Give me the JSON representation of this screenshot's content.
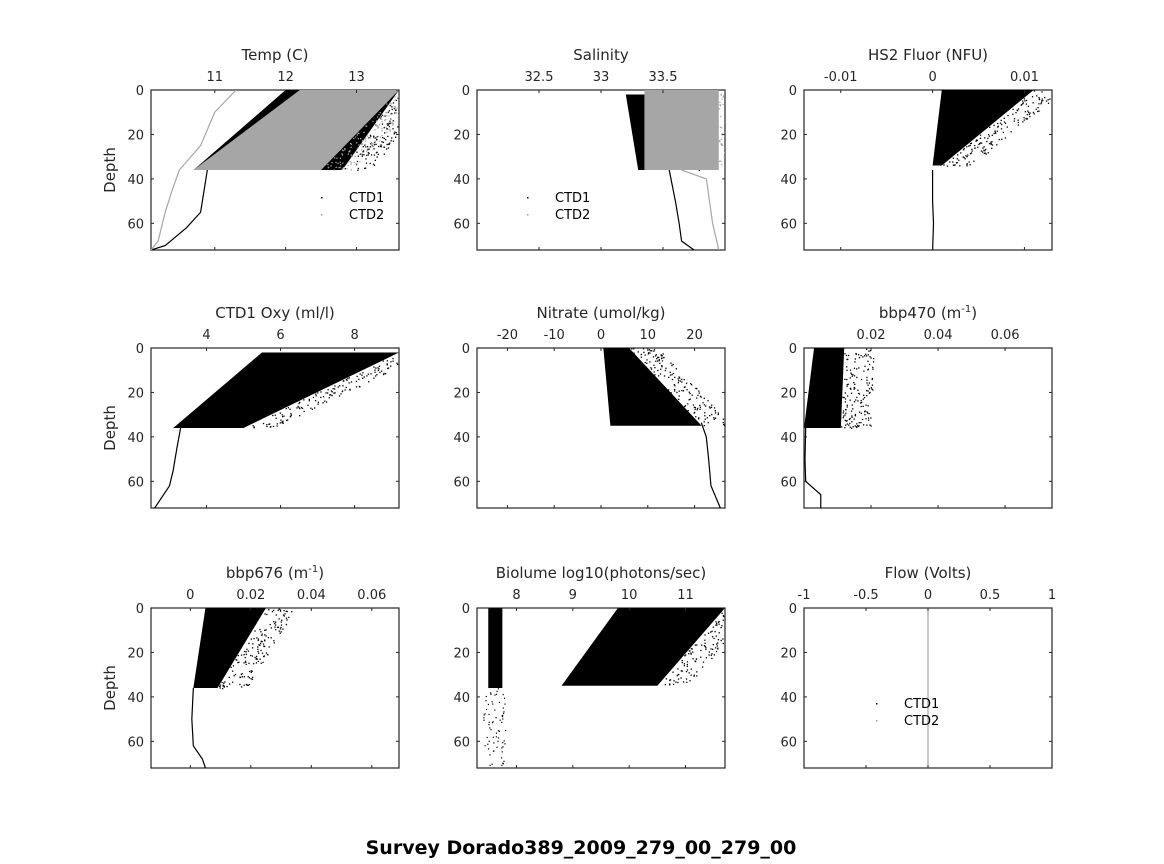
{
  "figure": {
    "suptitle": "Survey Dorado389_2009_279_00_279_00",
    "colors": {
      "ctd1": "#000000",
      "ctd2": "#a6a6a6",
      "axis": "#262626"
    }
  },
  "chart_data": [
    {
      "type": "scatter",
      "title": "Temp (C)",
      "title_sup": "",
      "ylabel": "Depth",
      "xlim": [
        10.1,
        13.6
      ],
      "ylim": [
        72,
        0
      ],
      "xticks": [
        11,
        12,
        13
      ],
      "xtick_labels": [
        "11",
        "12",
        "13"
      ],
      "yticks": [
        0,
        20,
        40,
        60
      ],
      "ytick_labels": [
        "0",
        "20",
        "40",
        "60"
      ],
      "legend": {
        "entries": [
          "CTD1",
          "CTD2"
        ],
        "location": "lower-right"
      },
      "series": [
        {
          "name": "CTD1",
          "color": "#000000",
          "profile": [
            [
              13.4,
              2
            ],
            [
              12.9,
              8
            ],
            [
              12.3,
              14
            ],
            [
              11.8,
              20
            ],
            [
              11.3,
              28
            ],
            [
              10.9,
              35
            ],
            [
              10.85,
              45
            ],
            [
              10.8,
              55
            ],
            [
              10.6,
              62
            ],
            [
              10.3,
              70
            ],
            [
              10.1,
              72
            ]
          ],
          "band": {
            "depth_range": [
              0,
              36
            ],
            "x_surface": [
              12.0,
              13.6
            ],
            "x_bottom": [
              10.7,
              12.8
            ]
          }
        },
        {
          "name": "CTD2",
          "color": "#a6a6a6",
          "profile": [
            [
              11.3,
              0
            ],
            [
              11.0,
              10
            ],
            [
              10.8,
              25
            ],
            [
              10.5,
              36
            ],
            [
              10.4,
              45
            ],
            [
              10.3,
              55
            ],
            [
              10.2,
              68
            ],
            [
              10.1,
              72
            ]
          ],
          "band": {
            "depth_range": [
              0,
              36
            ],
            "x_surface": [
              12.2,
              13.6
            ],
            "x_bottom": [
              10.7,
              12.5
            ]
          }
        }
      ]
    },
    {
      "type": "scatter",
      "title": "Salinity",
      "title_sup": "",
      "ylabel": "",
      "xlim": [
        32.0,
        34.0
      ],
      "ylim": [
        72,
        0
      ],
      "xticks": [
        32.5,
        33,
        33.5
      ],
      "xtick_labels": [
        "32.5",
        "33",
        "33.5"
      ],
      "yticks": [
        0,
        20,
        40,
        60
      ],
      "ytick_labels": [
        "0",
        "20",
        "40",
        "60"
      ],
      "legend": {
        "entries": [
          "CTD1",
          "CTD2"
        ],
        "location": "lower-left"
      },
      "series": [
        {
          "name": "CTD1",
          "color": "#000000",
          "profile": [
            [
              33.55,
              36
            ],
            [
              33.6,
              50
            ],
            [
              33.63,
              60
            ],
            [
              33.65,
              68
            ],
            [
              33.75,
              72
            ]
          ],
          "band": {
            "depth_range": [
              2,
              36
            ],
            "x_surface": [
              33.2,
              33.6
            ],
            "x_bottom": [
              33.3,
              33.6
            ]
          }
        },
        {
          "name": "CTD2",
          "color": "#a6a6a6",
          "profile": [
            [
              33.65,
              36
            ],
            [
              33.85,
              40
            ],
            [
              33.9,
              60
            ],
            [
              33.95,
              72
            ]
          ],
          "band": {
            "depth_range": [
              0,
              36
            ],
            "x_surface": [
              33.35,
              33.95
            ],
            "x_bottom": [
              33.35,
              33.95
            ]
          }
        }
      ]
    },
    {
      "type": "scatter",
      "title": "HS2 Fluor (NFU)",
      "title_sup": "",
      "ylabel": "",
      "xlim": [
        -0.014,
        0.013
      ],
      "ylim": [
        72,
        0
      ],
      "xticks": [
        -0.01,
        0,
        0.01
      ],
      "xtick_labels": [
        "-0.01",
        "0",
        "0.01"
      ],
      "yticks": [
        0,
        20,
        40,
        60
      ],
      "ytick_labels": [
        "0",
        "20",
        "40",
        "60"
      ],
      "legend": null,
      "series": [
        {
          "name": "CTD1",
          "color": "#000000",
          "profile": [
            [
              0,
              36
            ],
            [
              0,
              50
            ],
            [
              0.0001,
              60
            ],
            [
              0,
              72
            ]
          ],
          "band": {
            "depth_range": [
              0,
              34
            ],
            "x_surface": [
              0.001,
              0.011
            ],
            "x_bottom": [
              0.0,
              0.001
            ]
          }
        }
      ]
    },
    {
      "type": "scatter",
      "title": "CTD1 Oxy (ml/l)",
      "title_sup": "",
      "ylabel": "Depth",
      "xlim": [
        2.5,
        9.2
      ],
      "ylim": [
        72,
        0
      ],
      "xticks": [
        4,
        6,
        8
      ],
      "xtick_labels": [
        "4",
        "6",
        "8"
      ],
      "yticks": [
        0,
        20,
        40,
        60
      ],
      "ytick_labels": [
        "0",
        "20",
        "40",
        "60"
      ],
      "legend": null,
      "series": [
        {
          "name": "CTD1",
          "color": "#000000",
          "profile": [
            [
              3.3,
              36
            ],
            [
              3.2,
              45
            ],
            [
              3.1,
              55
            ],
            [
              3.0,
              62
            ],
            [
              2.6,
              72
            ]
          ],
          "band": {
            "depth_range": [
              2,
              36
            ],
            "x_surface": [
              5.5,
              9.2
            ],
            "x_bottom": [
              3.1,
              5.0
            ]
          }
        }
      ]
    },
    {
      "type": "scatter",
      "title": "Nitrate (umol/kg)",
      "title_sup": "",
      "ylabel": "",
      "xlim": [
        -26.5,
        26.5
      ],
      "ylim": [
        72,
        0
      ],
      "xticks": [
        -20,
        -10,
        0,
        10,
        20
      ],
      "xtick_labels": [
        "-20",
        "-10",
        "0",
        "10",
        "20"
      ],
      "yticks": [
        0,
        20,
        40,
        60
      ],
      "ytick_labels": [
        "0",
        "20",
        "40",
        "60"
      ],
      "legend": null,
      "series": [
        {
          "name": "CTD1",
          "color": "#000000",
          "profile": [
            [
              21.5,
              34
            ],
            [
              22.5,
              40
            ],
            [
              23,
              50
            ],
            [
              23.5,
              62
            ],
            [
              25.5,
              72
            ]
          ],
          "band": {
            "depth_range": [
              0,
              35
            ],
            "x_surface": [
              0.5,
              6
            ],
            "x_bottom": [
              2,
              21.5
            ]
          }
        }
      ]
    },
    {
      "type": "scatter",
      "title": "bbp470 (m",
      "title_sup": "-1",
      "title_suffix": ")",
      "ylabel": "",
      "xlim": [
        0.0,
        0.074
      ],
      "ylim": [
        72,
        0
      ],
      "xticks": [
        0.02,
        0.04,
        0.06
      ],
      "xtick_labels": [
        "0.02",
        "0.04",
        "0.06"
      ],
      "yticks": [
        0,
        20,
        40,
        60
      ],
      "ytick_labels": [
        "0",
        "20",
        "40",
        "60"
      ],
      "legend": null,
      "series": [
        {
          "name": "CTD1",
          "color": "#000000",
          "profile": [
            [
              0.0005,
              36
            ],
            [
              0.0003,
              50
            ],
            [
              0.0005,
              60
            ],
            [
              0.005,
              66
            ],
            [
              0.005,
              72
            ]
          ],
          "band": {
            "depth_range": [
              0,
              36
            ],
            "x_surface": [
              0.003,
              0.012
            ],
            "x_bottom": [
              0.0,
              0.011
            ]
          }
        }
      ]
    },
    {
      "type": "scatter",
      "title": "bbp676 (m",
      "title_sup": "-1",
      "title_suffix": ")",
      "ylabel": "Depth",
      "xlim": [
        -0.013,
        0.069
      ],
      "ylim": [
        72,
        0
      ],
      "xticks": [
        0,
        0.02,
        0.04,
        0.06
      ],
      "xtick_labels": [
        "0",
        "0.02",
        "0.04",
        "0.06"
      ],
      "yticks": [
        0,
        20,
        40,
        60
      ],
      "ytick_labels": [
        "0",
        "20",
        "40",
        "60"
      ],
      "legend": null,
      "series": [
        {
          "name": "CTD1",
          "color": "#000000",
          "profile": [
            [
              0.001,
              36
            ],
            [
              0.0005,
              50
            ],
            [
              0.001,
              62
            ],
            [
              0.004,
              68
            ],
            [
              0.005,
              72
            ]
          ],
          "band": {
            "depth_range": [
              0,
              36
            ],
            "x_surface": [
              0.005,
              0.025
            ],
            "x_bottom": [
              0.001,
              0.009
            ]
          }
        }
      ]
    },
    {
      "type": "scatter",
      "title": "Biolume log10(photons/sec)",
      "title_sup": "",
      "ylabel": "",
      "xlim": [
        7.3,
        11.7
      ],
      "ylim": [
        72,
        0
      ],
      "xticks": [
        8,
        9,
        10,
        11
      ],
      "xtick_labels": [
        "8",
        "9",
        "10",
        "11"
      ],
      "yticks": [
        0,
        20,
        40,
        60
      ],
      "ytick_labels": [
        "0",
        "20",
        "40",
        "60"
      ],
      "legend": null,
      "series": [
        {
          "name": "CTD1",
          "color": "#000000",
          "profile": [],
          "band": {
            "depth_range": [
              0,
              35
            ],
            "x_surface": [
              9.8,
              11.7
            ],
            "x_bottom": [
              8.8,
              10.5
            ]
          },
          "column": {
            "depth_range": [
              0,
              36
            ],
            "x_range": [
              7.5,
              7.75
            ]
          }
        }
      ]
    },
    {
      "type": "scatter",
      "title": "Flow (Volts)",
      "title_sup": "",
      "ylabel": "",
      "xlim": [
        -1,
        1
      ],
      "ylim": [
        72,
        0
      ],
      "xticks": [
        -1,
        -0.5,
        0,
        0.5,
        1
      ],
      "xtick_labels": [
        "-1",
        "-0.5",
        "0",
        "0.5",
        "1"
      ],
      "yticks": [
        0,
        20,
        40,
        60
      ],
      "ytick_labels": [
        "0",
        "20",
        "40",
        "60"
      ],
      "legend": {
        "entries": [
          "CTD1",
          "CTD2"
        ],
        "location": "lower-center"
      },
      "series": [
        {
          "name": "CTD2",
          "color": "#a6a6a6",
          "profile": [
            [
              0,
              0
            ],
            [
              0,
              72
            ]
          ],
          "band": null
        }
      ]
    }
  ]
}
